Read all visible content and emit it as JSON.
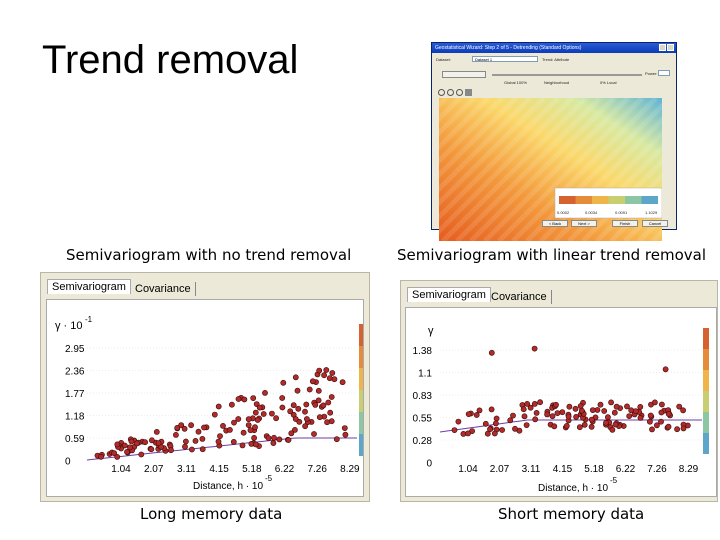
{
  "slide_title": "Trend removal",
  "caption_left_top": "Semivariogram with no trend removal",
  "caption_right_top": "Semivariogram with linear trend removal",
  "caption_left_bottom": "Long memory data",
  "caption_right_bottom": "Short memory data",
  "wizard": {
    "title": "Geostatistical Wizard: Step 2 of 5 - Detrending (Standard Options)",
    "dataset_label": "Dataset:",
    "dataset_value": "Dataset 1",
    "trend_label": "Trend: Attribute",
    "slider_left": "Global 100%",
    "slider_mid": "Neighborhood",
    "slider_right": "0% Local",
    "power_label": "Power:",
    "legend_values": [
      "0.0002",
      "0.0034",
      "0.0091",
      "1.1029"
    ],
    "buttons": [
      "< Back",
      "Next >",
      "Finish",
      "Cancel"
    ]
  },
  "left_panel": {
    "tab_active": "Semivariogram",
    "tab_inactive": "Covariance",
    "y_symbol": "γ · 10",
    "y_exp": "-1",
    "y_ticks": [
      "2.95",
      "2.36",
      "1.77",
      "1.18",
      "0.59",
      "0"
    ],
    "x_ticks": [
      "1.04",
      "2.07",
      "3.11",
      "4.15",
      "5.18",
      "6.22",
      "7.26",
      "8.29"
    ],
    "x_label": "Distance, h · 10",
    "x_exp": "-5"
  },
  "right_panel": {
    "tab_active": "Semivariogram",
    "tab_inactive": "Covariance",
    "y_symbol": "γ",
    "y_ticks": [
      "1.38",
      "1.1",
      "0.83",
      "0.55",
      "0.28",
      "0"
    ],
    "x_ticks": [
      "1.04",
      "2.07",
      "3.11",
      "4.15",
      "5.18",
      "6.22",
      "7.26",
      "8.29"
    ],
    "x_label": "Distance, h · 10",
    "x_exp": "-5"
  },
  "colors": {
    "point_fill": "#b22b2b",
    "point_stroke": "#3b0a0a",
    "model_line": "#6b3fa0",
    "legend_bar": [
      "#d6622f",
      "#e58c3a",
      "#f0b54a",
      "#c7cf70",
      "#8cc6a3",
      "#5ca7c9"
    ]
  }
}
